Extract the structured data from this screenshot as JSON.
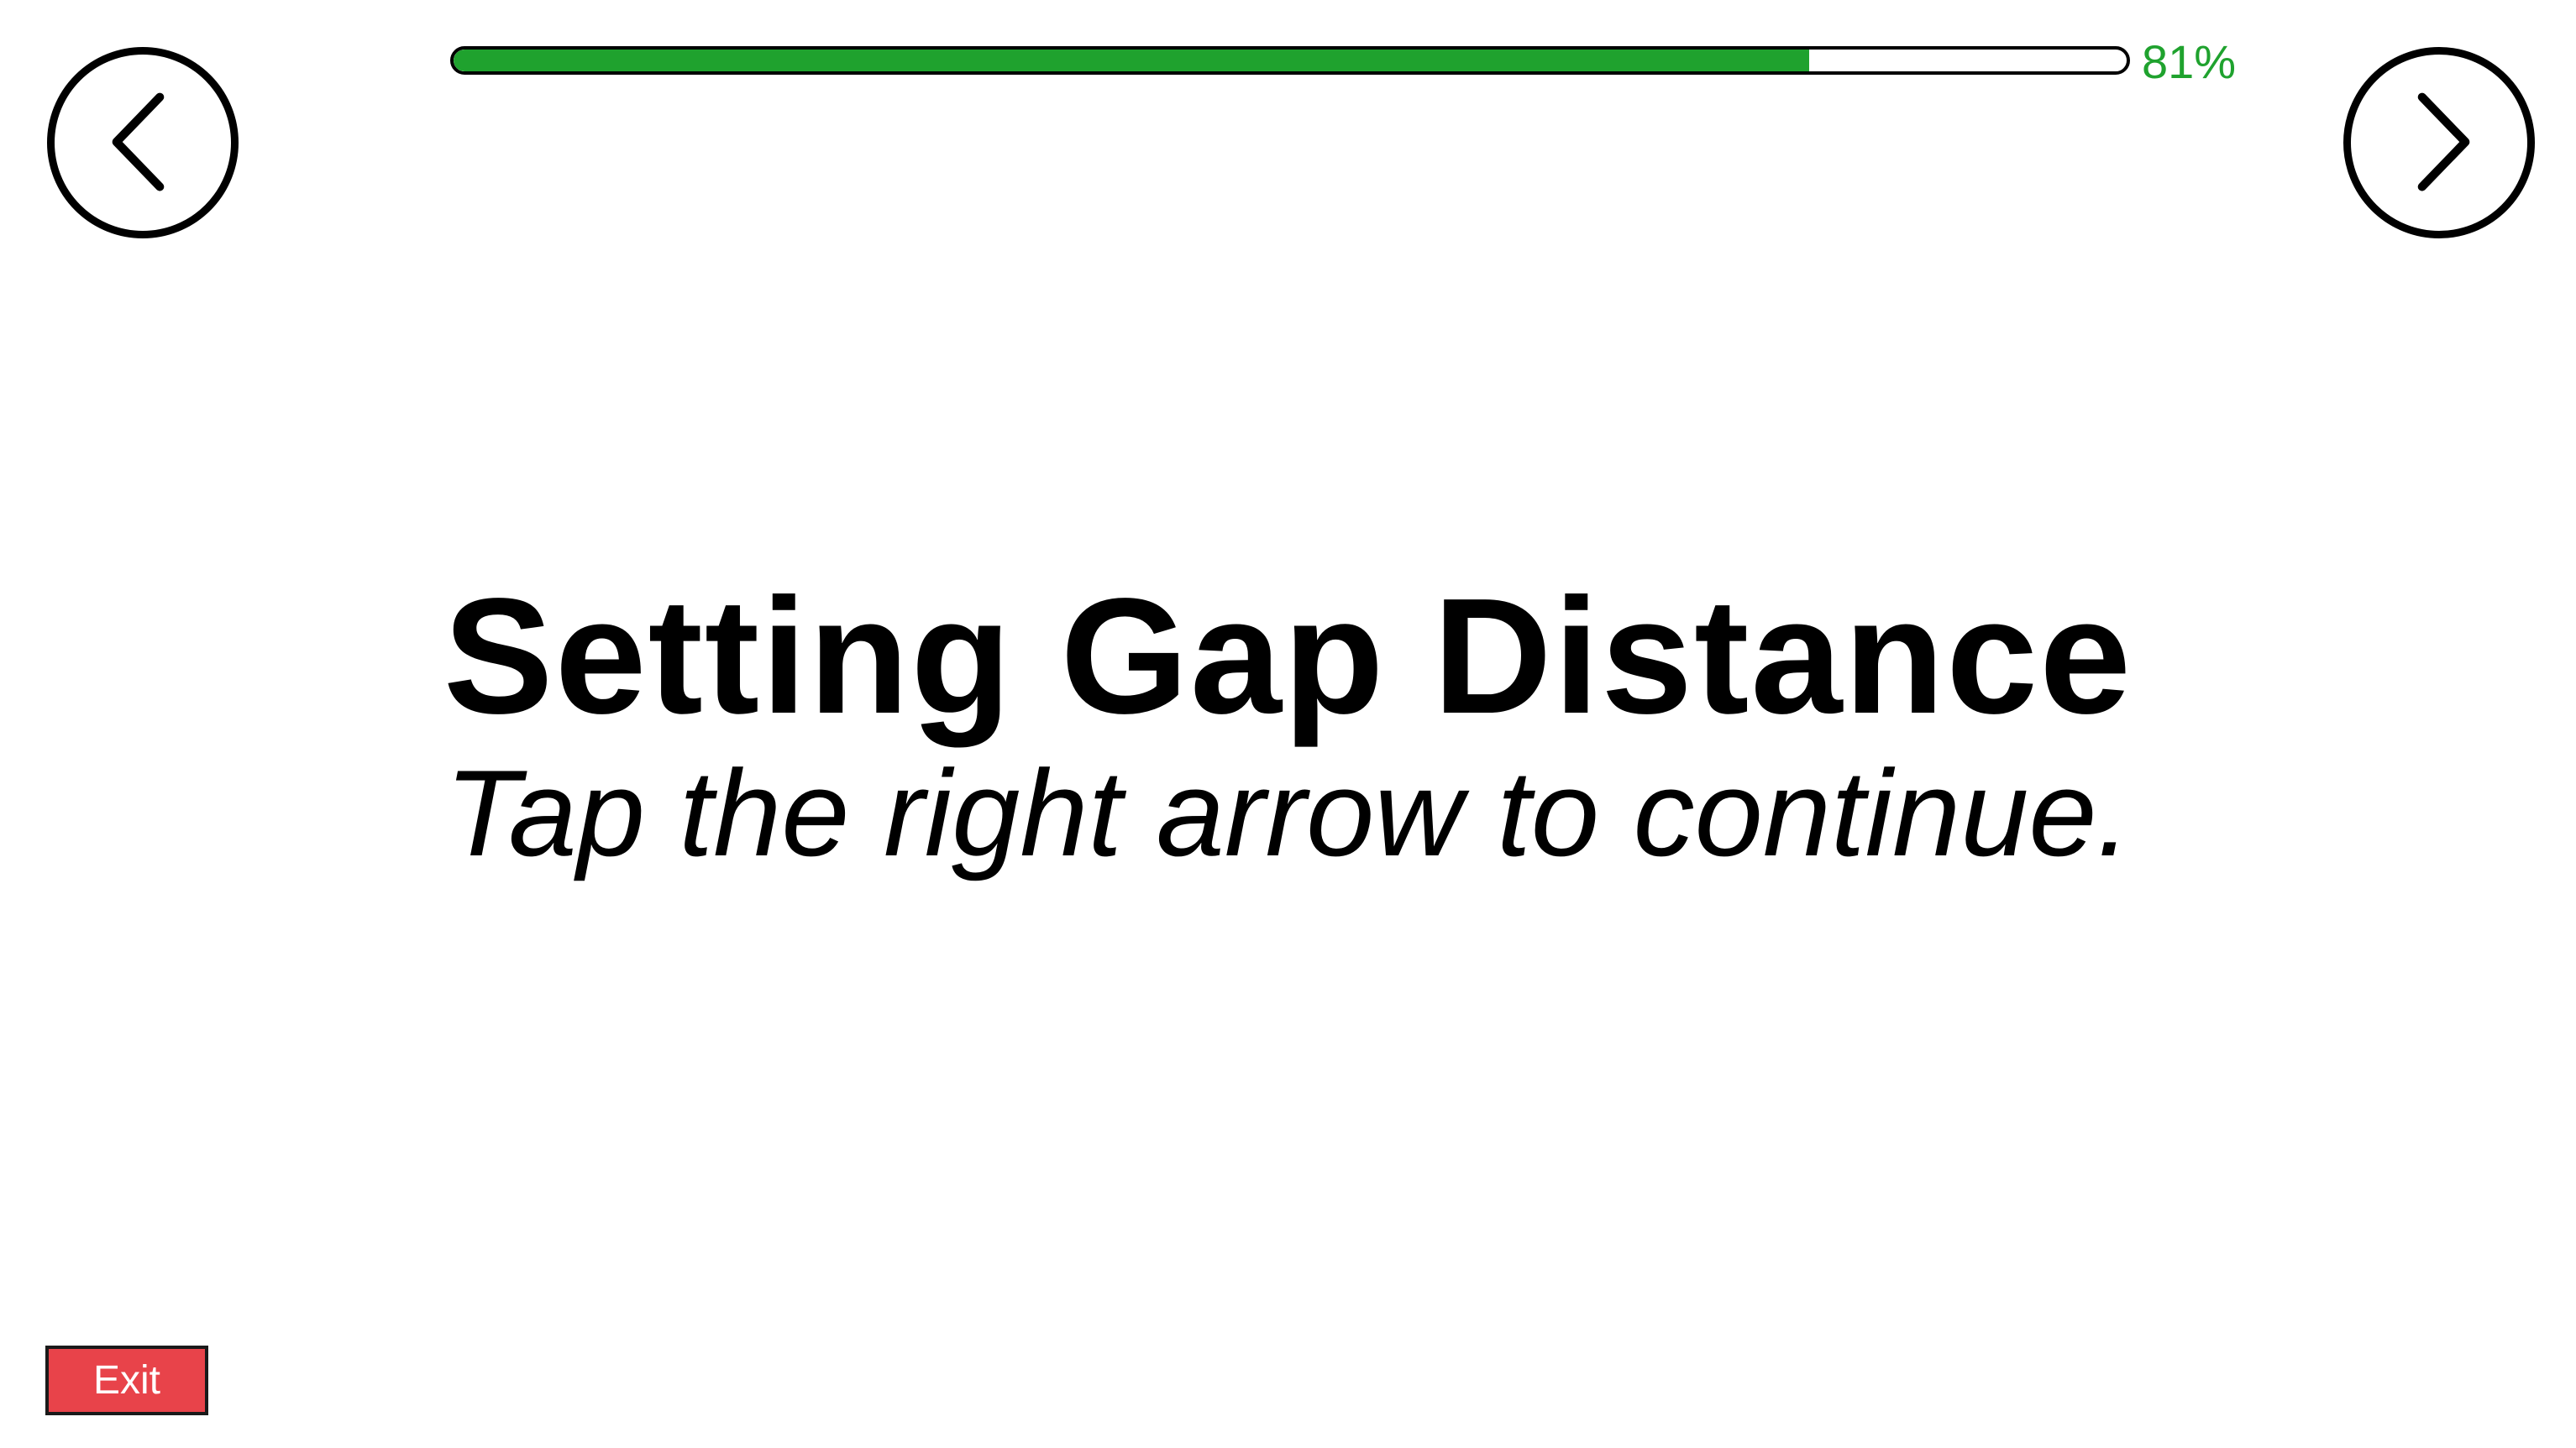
{
  "header": {
    "back_icon": "chevron-left-icon",
    "next_icon": "chevron-right-icon",
    "progress": {
      "percent": 81,
      "label": "81%",
      "color": "#1fa22e"
    }
  },
  "main": {
    "title": "Setting Gap Distance",
    "subtitle": "Tap the right arrow to continue."
  },
  "footer": {
    "exit_label": "Exit",
    "exit_color": "#e8434a"
  }
}
